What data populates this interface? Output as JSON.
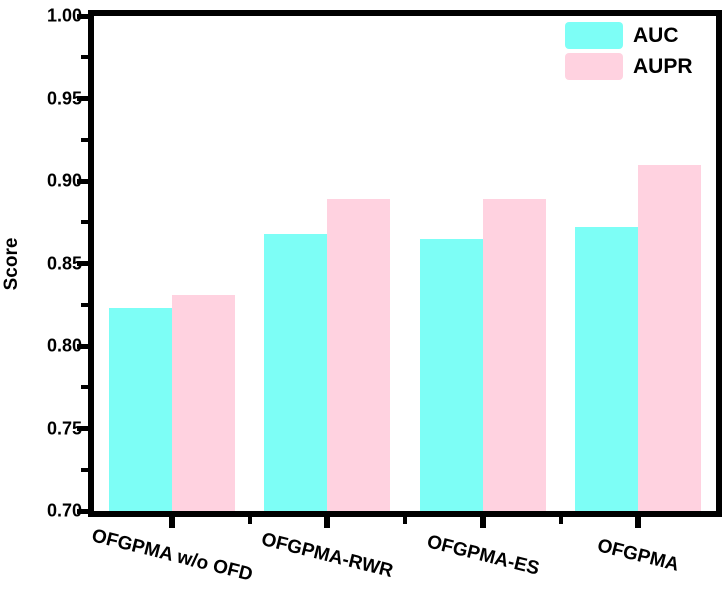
{
  "chart_data": {
    "type": "bar",
    "title": "",
    "xlabel": "",
    "ylabel": "Score",
    "categories": [
      "OFGPMA w/o OFD",
      "OFGPMA-RWR",
      "OFGPMA-ES",
      "OFGPMA"
    ],
    "series": [
      {
        "name": "AUC",
        "color": "#7DFEF6",
        "values": [
          0.823,
          0.868,
          0.865,
          0.872
        ]
      },
      {
        "name": "AUPR",
        "color": "#FFD2E0",
        "values": [
          0.831,
          0.889,
          0.889,
          0.91
        ]
      }
    ],
    "ylim": [
      0.7,
      1.0
    ],
    "yticks": [
      "1.00",
      "0.95",
      "0.90",
      "0.85",
      "0.80",
      "0.75",
      "0.70"
    ],
    "ytick_values": [
      1.0,
      0.95,
      0.9,
      0.85,
      0.8,
      0.75,
      0.7
    ],
    "y_minor_step": 0.025,
    "grid": false,
    "legend_position": "top-right",
    "axis_color": "#000000",
    "background_color": "#ffffff"
  }
}
